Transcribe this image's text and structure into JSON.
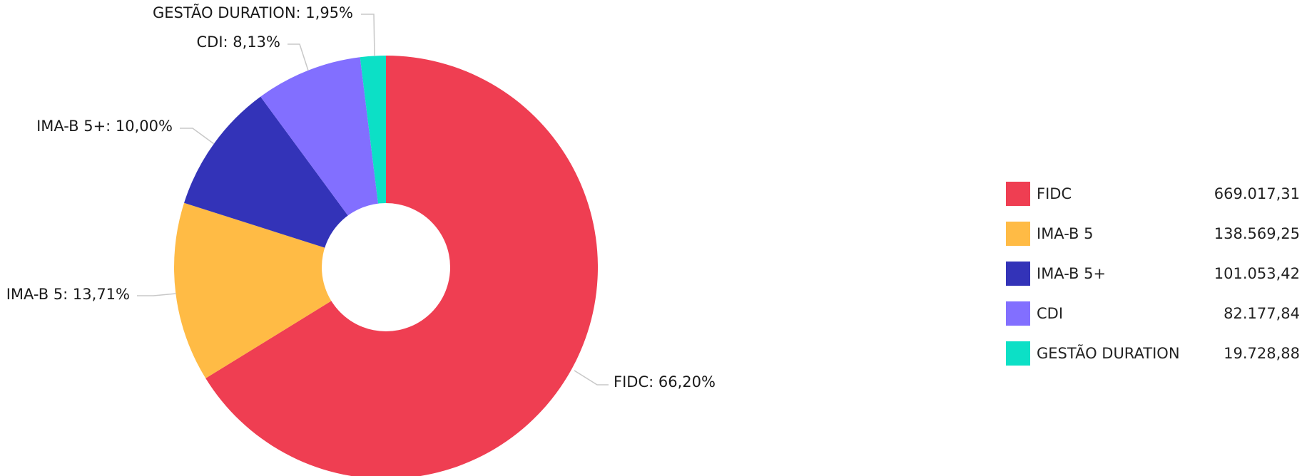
{
  "chart_data": {
    "type": "pie",
    "title": "",
    "donut": true,
    "slices": [
      {
        "name": "FIDC",
        "value": 669017.31,
        "value_label": "669.017,31",
        "label": "FIDC: 66,20%",
        "color": "#ef3e52"
      },
      {
        "name": "IMA-B 5",
        "value": 138569.25,
        "value_label": "138.569,25",
        "label": "IMA-B 5: 13,71%",
        "color": "#ffbb45"
      },
      {
        "name": "IMA-B 5+",
        "value": 101053.42,
        "value_label": "101.053,42",
        "label": "IMA-B 5+: 10,00%",
        "color": "#3333b8"
      },
      {
        "name": "CDI",
        "value": 82177.84,
        "value_label": "82.177,84",
        "label": "CDI: 8,13%",
        "color": "#826fff"
      },
      {
        "name": "GESTÃO DURATION",
        "value": 19728.88,
        "value_label": "19.728,88",
        "label": "GESTÃO DURATION: 1,95%",
        "color": "#0ce0c6"
      }
    ],
    "legend_position": "right"
  }
}
